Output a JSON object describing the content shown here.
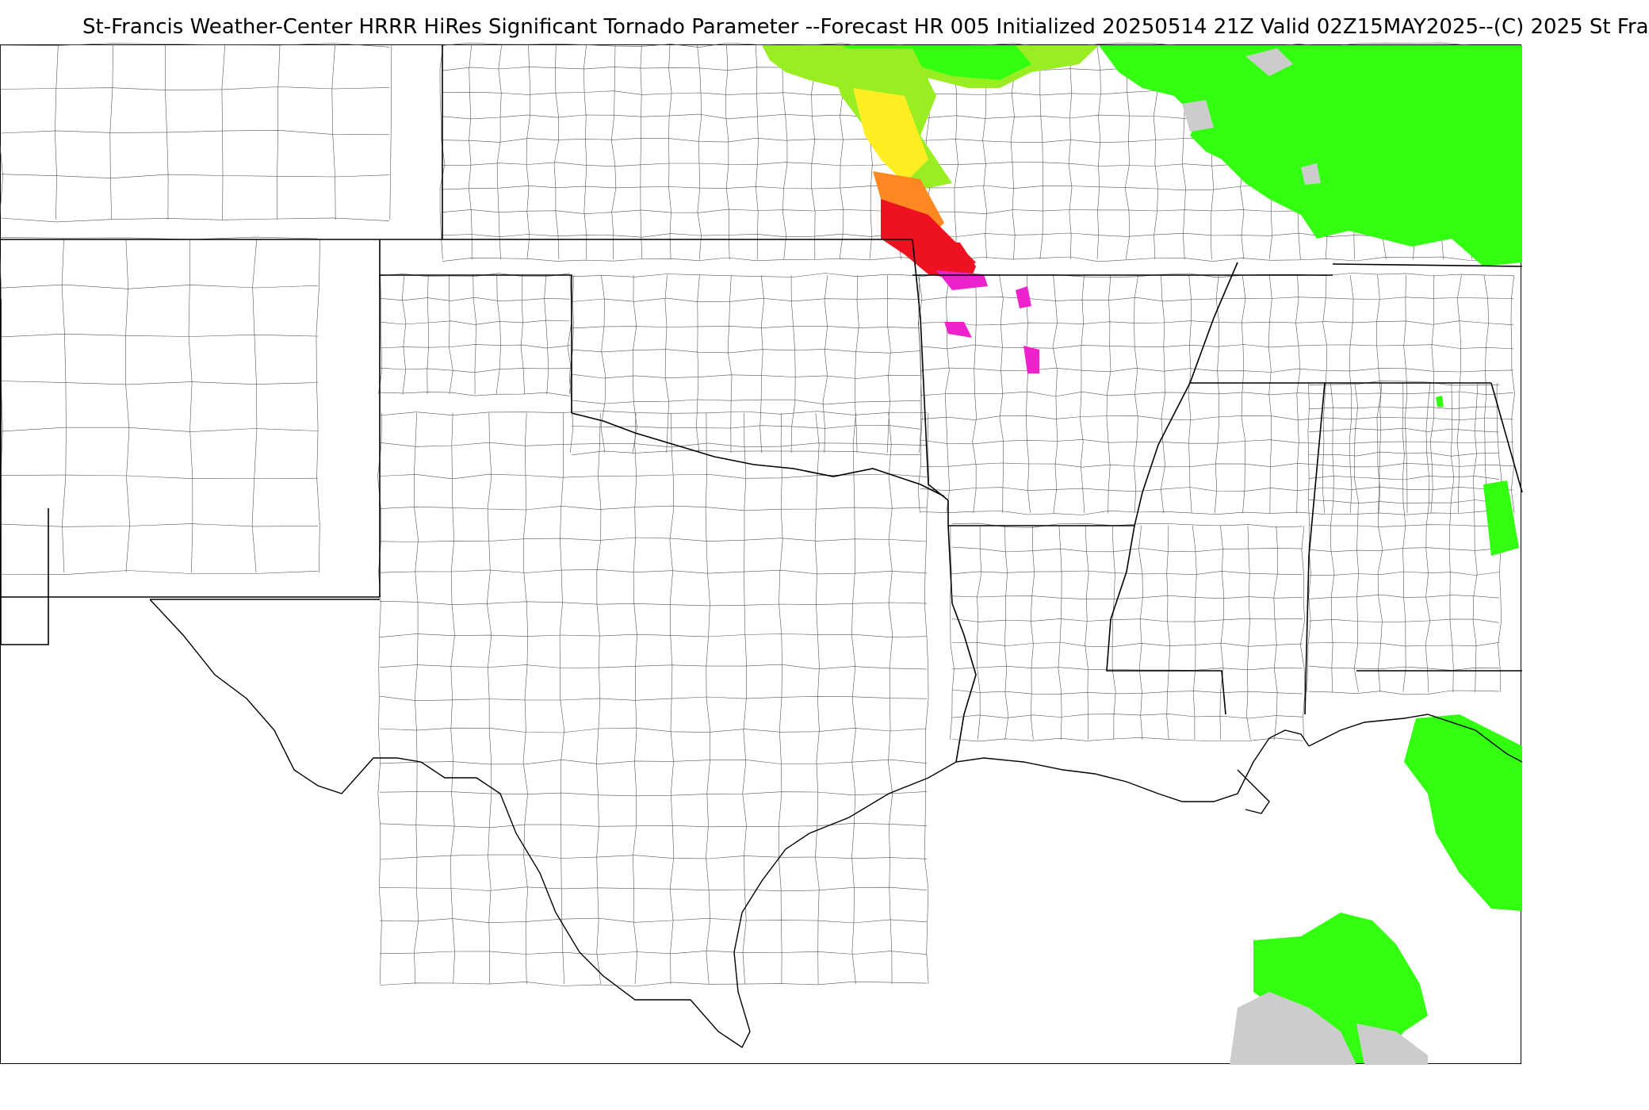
{
  "header": {
    "title": "St-Francis Weather-Center HRRR HiRes Significant Tornado Parameter --Forecast HR 005 Initialized 20250514 21Z Valid 02Z15MAY2025--(C) 2025 St Fra"
  },
  "map": {
    "colors": {
      "border": "#000000",
      "county": "#333333",
      "light_green": "#99ee22",
      "green": "#33ff11",
      "yellow": "#ffee22",
      "orange": "#ff8822",
      "red": "#ee1122",
      "magenta": "#ee22cc",
      "gray": "#cccccc"
    }
  }
}
